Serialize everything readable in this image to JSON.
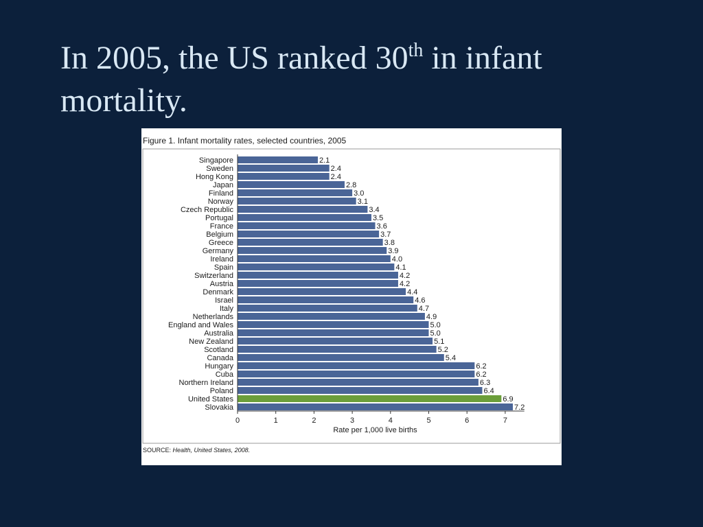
{
  "slide": {
    "title_line1_pre": "In 2005, the US ranked 30",
    "title_superscript": "th",
    "title_line1_post": " in infant",
    "title_line2": "mortality."
  },
  "figure": {
    "title": "Figure 1. Infant mortality rates, selected countries, 2005",
    "source_label": "SOURCE:",
    "source_text": "Health, United States, 2008."
  },
  "colors": {
    "background": "#0c203b",
    "title_text": "#d9e8f4",
    "bar": "#4a6597",
    "highlight_bar": "#6b9e3a"
  },
  "chart_data": {
    "type": "bar",
    "orientation": "horizontal",
    "title": "Figure 1. Infant mortality rates, selected countries, 2005",
    "xlabel": "Rate per 1,000 live births",
    "ylabel": "",
    "xlim": [
      0,
      7.5
    ],
    "xticks": [
      0,
      1,
      2,
      3,
      4,
      5,
      6,
      7
    ],
    "grid": false,
    "highlight": "United States",
    "categories": [
      "Singapore",
      "Sweden",
      "Hong Kong",
      "Japan",
      "Finland",
      "Norway",
      "Czech Republic",
      "Portugal",
      "France",
      "Belgium",
      "Greece",
      "Germany",
      "Ireland",
      "Spain",
      "Switzerland",
      "Austria",
      "Denmark",
      "Israel",
      "Italy",
      "Netherlands",
      "England and Wales",
      "Australia",
      "New Zealand",
      "Scotland",
      "Canada",
      "Hungary",
      "Cuba",
      "Northern Ireland",
      "Poland",
      "United States",
      "Slovakia"
    ],
    "values": [
      2.1,
      2.4,
      2.4,
      2.8,
      3.0,
      3.1,
      3.4,
      3.5,
      3.6,
      3.7,
      3.8,
      3.9,
      4.0,
      4.1,
      4.2,
      4.2,
      4.4,
      4.6,
      4.7,
      4.9,
      5.0,
      5.0,
      5.1,
      5.2,
      5.4,
      6.2,
      6.2,
      6.3,
      6.4,
      6.9,
      7.2
    ],
    "value_labels": [
      "2.1",
      "2.4",
      "2.4",
      "2.8",
      "3.0",
      "3.1",
      "3.4",
      "3.5",
      "3.6",
      "3.7",
      "3.8",
      "3.9",
      "4.0",
      "4.1",
      "4.2",
      "4.2",
      "4.4",
      "4.6",
      "4.7",
      "4.9",
      "5.0",
      "5.0",
      "5.1",
      "5.2",
      "5.4",
      "6.2",
      "6.2",
      "6.3",
      "6.4",
      "6.9",
      "7.2"
    ]
  }
}
